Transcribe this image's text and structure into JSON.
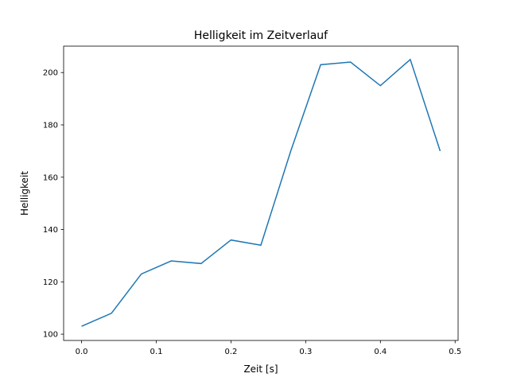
{
  "chart_data": {
    "type": "line",
    "title": "Helligkeit im Zeitverlauf",
    "xlabel": "Zeit [s]",
    "ylabel": "Helligkeit",
    "xlim": [
      -0.024,
      0.504
    ],
    "ylim": [
      97.6,
      210.1
    ],
    "xticks": [
      0.0,
      0.1,
      0.2,
      0.3,
      0.4,
      0.5
    ],
    "xtick_labels": [
      "0.0",
      "0.1",
      "0.2",
      "0.3",
      "0.4",
      "0.5"
    ],
    "yticks": [
      100,
      120,
      140,
      160,
      180,
      200
    ],
    "ytick_labels": [
      "100",
      "120",
      "140",
      "160",
      "180",
      "200"
    ],
    "grid": false,
    "series": [
      {
        "name": "Helligkeit",
        "color": "#1f77b4",
        "x": [
          0.0,
          0.04,
          0.08,
          0.12,
          0.16,
          0.2,
          0.24,
          0.28,
          0.32,
          0.36,
          0.4,
          0.44,
          0.48
        ],
        "y": [
          103,
          108,
          123,
          128,
          127,
          136,
          134,
          170,
          203,
          204,
          195,
          205,
          170
        ]
      }
    ]
  }
}
